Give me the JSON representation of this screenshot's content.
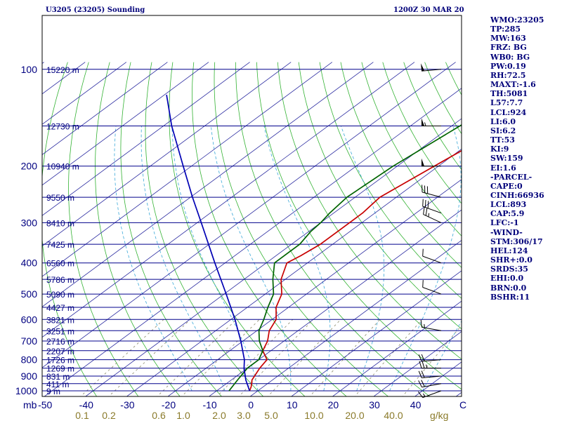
{
  "header": {
    "station": "U3205 (23205) Sounding",
    "time": "1200Z 30 MAR 20"
  },
  "indices": [
    "WMO:23205",
    "TP:285",
    "MW:163",
    "FRZ: BG",
    "WB0: BG",
    "PW:0.19",
    "RH:72.5",
    "MAXT:-1.6",
    "TH:5081",
    "L57:7.7",
    "LCL:924",
    "LI:6.0",
    "SI:6.2",
    "TT:53",
    "KI:9",
    "SW:159",
    "EI:1.6",
    "-PARCEL-",
    "CAPE:0",
    "CINH:66936",
    "LCL:893",
    "CAP:5.9",
    "LFC:-1",
    "-WIND-",
    "STM:306/17",
    "HEL:124",
    "SHR+:0.0",
    "SRDS:35",
    "EHI:0.0",
    "BRN:0.0",
    "BSHR:11"
  ],
  "chart_data": {
    "type": "line",
    "diagram": "skew-T log-P",
    "yscale": "log",
    "ylabel": "mb",
    "xlabel": "C",
    "mixing_ratio_unit": "g/kg",
    "pressure_ticks": [
      100,
      200,
      300,
      400,
      500,
      600,
      700,
      800,
      900,
      1000
    ],
    "temperature_ticks": [
      -50,
      -40,
      -30,
      -20,
      -10,
      0,
      10,
      20,
      30,
      40
    ],
    "mixing_ratio_ticks": [
      "0.1",
      "0.2",
      "0.6",
      "1.0",
      "2.0",
      "3.0",
      "5.0",
      "10.0",
      "20.0",
      "40.0"
    ],
    "height_labels": [
      {
        "p": 1000,
        "label": "9 m"
      },
      {
        "p": 950,
        "label": "411 m"
      },
      {
        "p": 900,
        "label": "831 m"
      },
      {
        "p": 850,
        "label": "1269 m"
      },
      {
        "p": 800,
        "label": "1726 m"
      },
      {
        "p": 750,
        "label": "2207 m"
      },
      {
        "p": 700,
        "label": "2716 m"
      },
      {
        "p": 650,
        "label": "3251 m"
      },
      {
        "p": 600,
        "label": "3821 m"
      },
      {
        "p": 550,
        "label": "4427 m"
      },
      {
        "p": 500,
        "label": "5090 m"
      },
      {
        "p": 450,
        "label": "5786 m"
      },
      {
        "p": 400,
        "label": "6560 m"
      },
      {
        "p": 350,
        "label": "7425 m"
      },
      {
        "p": 300,
        "label": "8410 m"
      },
      {
        "p": 250,
        "label": "9550 m"
      },
      {
        "p": 200,
        "label": "10940 m"
      },
      {
        "p": 150,
        "label": "12730 m"
      },
      {
        "p": 100,
        "label": "15220 m"
      }
    ],
    "grid": true,
    "series": [
      {
        "color": "#c80000",
        "points": [
          [
            1000,
            -2.0
          ],
          [
            970,
            -3.0
          ],
          [
            925,
            -5.0
          ],
          [
            850,
            -7.0
          ],
          [
            800,
            -8.0
          ],
          [
            750,
            -12.0
          ],
          [
            700,
            -14.0
          ],
          [
            650,
            -17.0
          ],
          [
            600,
            -19.0
          ],
          [
            550,
            -23.0
          ],
          [
            500,
            -26.0
          ],
          [
            450,
            -31.0
          ],
          [
            400,
            -35.0
          ],
          [
            380,
            -34.0
          ],
          [
            350,
            -33.0
          ],
          [
            320,
            -33.0
          ],
          [
            300,
            -33.0
          ],
          [
            280,
            -33.0
          ],
          [
            250,
            -34.0
          ],
          [
            200,
            -31.0
          ],
          [
            150,
            -27.0
          ],
          [
            100,
            -19.0
          ]
        ]
      },
      {
        "color": "#006400",
        "points": [
          [
            1000,
            -7.0
          ],
          [
            925,
            -8.5
          ],
          [
            850,
            -10.0
          ],
          [
            800,
            -10.0
          ],
          [
            750,
            -12.0
          ],
          [
            700,
            -16.0
          ],
          [
            650,
            -19.5
          ],
          [
            600,
            -22.0
          ],
          [
            550,
            -25.0
          ],
          [
            500,
            -28.0
          ],
          [
            450,
            -33.0
          ],
          [
            400,
            -38.0
          ],
          [
            370,
            -38.0
          ],
          [
            350,
            -38.0
          ],
          [
            320,
            -39.5
          ],
          [
            300,
            -40.0
          ],
          [
            280,
            -41.0
          ],
          [
            250,
            -42.0
          ],
          [
            200,
            -41.0
          ],
          [
            150,
            -38.0
          ],
          [
            110,
            -35.0
          ]
        ]
      },
      {
        "color": "#0000b4",
        "points": [
          [
            1000,
            -2.0
          ],
          [
            925,
            -6.5
          ],
          [
            850,
            -10.8
          ],
          [
            800,
            -13.5
          ],
          [
            700,
            -20.5
          ],
          [
            600,
            -29.0
          ],
          [
            500,
            -39.5
          ],
          [
            400,
            -52.5
          ],
          [
            300,
            -69.0
          ],
          [
            250,
            -79.5
          ],
          [
            200,
            -92.0
          ],
          [
            150,
            -108.0
          ],
          [
            120,
            -119.5
          ]
        ]
      }
    ],
    "wind_barbs": [
      {
        "p": 1000,
        "dir": 250,
        "speed": 15
      },
      {
        "p": 950,
        "dir": 260,
        "speed": 20
      },
      {
        "p": 900,
        "dir": 265,
        "speed": 20
      },
      {
        "p": 850,
        "dir": 270,
        "speed": 25
      },
      {
        "p": 800,
        "dir": 265,
        "speed": 20
      },
      {
        "p": 650,
        "dir": 280,
        "speed": 15
      },
      {
        "p": 500,
        "dir": 290,
        "speed": 10
      },
      {
        "p": 400,
        "dir": 290,
        "speed": 10
      },
      {
        "p": 300,
        "dir": 295,
        "speed": 25
      },
      {
        "p": 280,
        "dir": 290,
        "speed": 30
      },
      {
        "p": 250,
        "dir": 285,
        "speed": 30
      },
      {
        "p": 200,
        "dir": 270,
        "speed": 50
      },
      {
        "p": 150,
        "dir": 270,
        "speed": 55
      },
      {
        "p": 100,
        "dir": 265,
        "speed": 50
      }
    ]
  }
}
